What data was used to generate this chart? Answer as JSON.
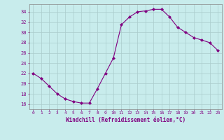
{
  "x": [
    0,
    1,
    2,
    3,
    4,
    5,
    6,
    7,
    8,
    9,
    10,
    11,
    12,
    13,
    14,
    15,
    16,
    17,
    18,
    19,
    20,
    21,
    22,
    23
  ],
  "y": [
    22,
    21,
    19.5,
    18,
    17,
    16.5,
    16.2,
    16.2,
    19,
    22,
    25,
    31.5,
    33,
    34,
    34.2,
    34.5,
    34.5,
    33,
    31,
    30,
    29,
    28.5,
    28,
    26.5
  ],
  "line_color": "#800080",
  "marker": "D",
  "marker_size": 2.0,
  "bg_color": "#c8ecec",
  "grid_color": "#aacccc",
  "xlabel": "Windchill (Refroidissement éolien,°C)",
  "xlabel_color": "#800080",
  "tick_color": "#800080",
  "ylim": [
    15.0,
    35.5
  ],
  "xlim": [
    -0.5,
    23.5
  ],
  "yticks": [
    16,
    18,
    20,
    22,
    24,
    26,
    28,
    30,
    32,
    34
  ],
  "xticks": [
    0,
    1,
    2,
    3,
    4,
    5,
    6,
    7,
    8,
    9,
    10,
    11,
    12,
    13,
    14,
    15,
    16,
    17,
    18,
    19,
    20,
    21,
    22,
    23
  ]
}
